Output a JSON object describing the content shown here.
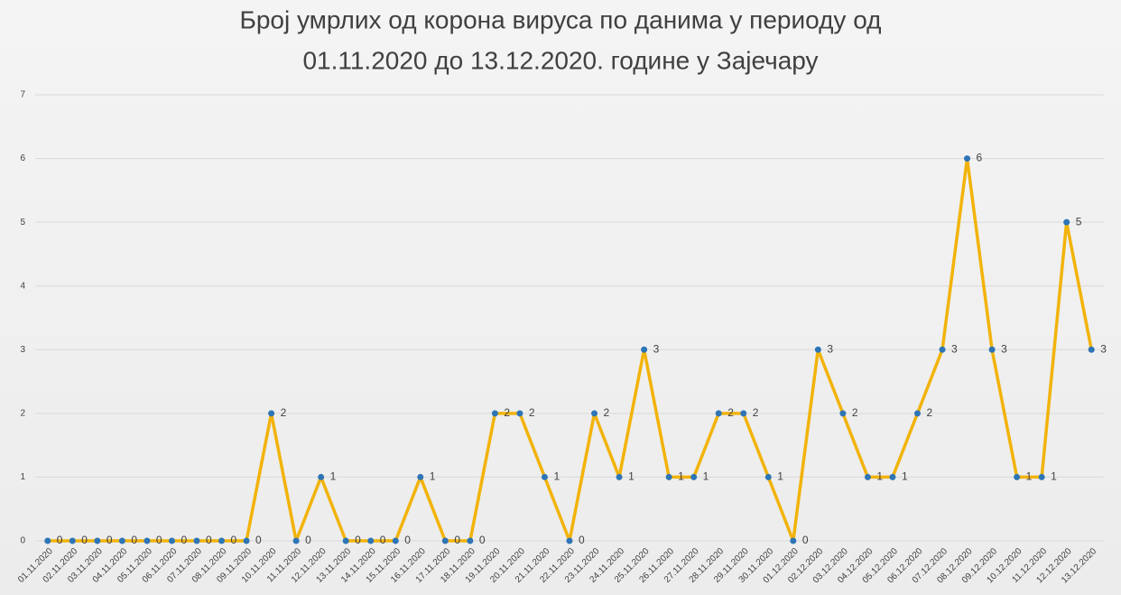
{
  "chart_data": {
    "type": "line",
    "title": [
      "Број умрлих од корона вируса по данима у периоду од",
      "01.11.2020 до 13.12.2020. године у Зајечару"
    ],
    "categories": [
      "01.11.2020",
      "02.11.2020",
      "03.11.2020",
      "04.11.2020",
      "05.11.2020",
      "06.11.2020",
      "07.11.2020",
      "08.11.2020",
      "09.11.2020",
      "10.11.2020",
      "11.11.2020",
      "12.11.2020",
      "13.11.2020",
      "14.11.2020",
      "15.11.2020",
      "16.11.2020",
      "17.11.2020",
      "18.11.2020",
      "19.11.2020",
      "20.11.2020",
      "21.11.2020",
      "22.11.2020",
      "23.11.2020",
      "24.11.2020",
      "25.11.2020",
      "26.11.2020",
      "27.11.2020",
      "28.11.2020",
      "29.11.2020",
      "30.11.2020",
      "01.12.2020",
      "02.12.2020",
      "03.12.2020",
      "04.12.2020",
      "05.12.2020",
      "06.12.2020",
      "07.12.2020",
      "08.12.2020",
      "09.12.2020",
      "10.12.2020",
      "11.12.2020",
      "12.12.2020",
      "13.12.2020"
    ],
    "values": [
      0,
      0,
      0,
      0,
      0,
      0,
      0,
      0,
      0,
      2,
      0,
      1,
      0,
      0,
      0,
      1,
      0,
      0,
      2,
      2,
      1,
      0,
      2,
      1,
      3,
      1,
      1,
      2,
      2,
      1,
      0,
      3,
      2,
      1,
      1,
      2,
      3,
      6,
      3,
      1,
      1,
      5,
      3
    ],
    "color": "#f2b30a",
    "marker_color": "#2e75b6",
    "ylim": [
      0,
      7
    ],
    "yticks": [
      0,
      1,
      2,
      3,
      4,
      5,
      6,
      7
    ],
    "grid": true
  }
}
